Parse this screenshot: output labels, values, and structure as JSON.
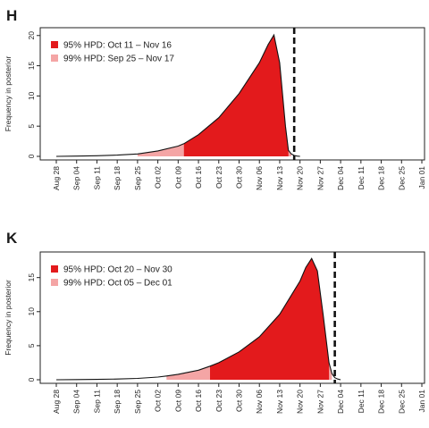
{
  "chart_data": [
    {
      "panel": "H",
      "type": "area",
      "ylabel": "Frequency in posterior",
      "ylim": [
        0,
        21
      ],
      "yticks": [
        0,
        5,
        10,
        15,
        20
      ],
      "x_ticks": [
        "Aug 28",
        "Sep 04",
        "Sep 11",
        "Sep 18",
        "Sep 25",
        "Oct 02",
        "Oct 09",
        "Oct 16",
        "Oct 23",
        "Oct 30",
        "Nov 06",
        "Nov 13",
        "Nov 20",
        "Nov 27",
        "Dec 04",
        "Dec 11",
        "Dec 18",
        "Dec 25",
        "Jan 01"
      ],
      "legend": [
        {
          "label": "95% HPD: Oct 11 – Nov 16",
          "color": "#e31a1c"
        },
        {
          "label": "99% HPD: Sep 25 – Nov 17",
          "color": "#f4a5a5"
        }
      ],
      "hpd95": [
        "Oct 11",
        "Nov 16"
      ],
      "hpd99": [
        "Sep 25",
        "Nov 17"
      ],
      "vline": "Nov 18",
      "x": [
        "Aug 28",
        "Sep 04",
        "Sep 11",
        "Sep 18",
        "Sep 25",
        "Oct 02",
        "Oct 09",
        "Oct 11",
        "Oct 16",
        "Oct 23",
        "Oct 30",
        "Nov 06",
        "Nov 09",
        "Nov 11",
        "Nov 13",
        "Nov 15",
        "Nov 16",
        "Nov 17",
        "Nov 18",
        "Nov 19",
        "Nov 20"
      ],
      "y": [
        0.0,
        0.05,
        0.1,
        0.2,
        0.4,
        0.9,
        1.7,
        2.1,
        3.6,
        6.4,
        10.4,
        15.5,
        18.5,
        20.1,
        15.5,
        5.0,
        1.0,
        0.4,
        0.15,
        0.05,
        0.0
      ]
    },
    {
      "panel": "K",
      "type": "area",
      "ylabel": "Frequency in posterior",
      "ylim": [
        0,
        18.5
      ],
      "yticks": [
        0,
        5,
        10,
        15
      ],
      "x_ticks": [
        "Aug 28",
        "Sep 04",
        "Sep 11",
        "Sep 18",
        "Sep 25",
        "Oct 02",
        "Oct 09",
        "Oct 16",
        "Oct 23",
        "Oct 30",
        "Nov 06",
        "Nov 13",
        "Nov 20",
        "Nov 27",
        "Dec 04",
        "Dec 11",
        "Dec 18",
        "Dec 25",
        "Jan 01"
      ],
      "legend": [
        {
          "label": "95% HPD: Oct 20 – Nov 30",
          "color": "#e31a1c"
        },
        {
          "label": "99% HPD: Oct 05 – Dec 01",
          "color": "#f4a5a5"
        }
      ],
      "hpd95": [
        "Oct 20",
        "Nov 30"
      ],
      "hpd99": [
        "Oct 05",
        "Dec 01"
      ],
      "vline": "Dec 02",
      "x": [
        "Aug 28",
        "Sep 04",
        "Sep 11",
        "Sep 18",
        "Sep 25",
        "Oct 02",
        "Oct 05",
        "Oct 09",
        "Oct 16",
        "Oct 20",
        "Oct 23",
        "Oct 30",
        "Nov 06",
        "Nov 13",
        "Nov 20",
        "Nov 22",
        "Nov 24",
        "Nov 26",
        "Nov 28",
        "Nov 30",
        "Dec 01",
        "Dec 02",
        "Dec 03",
        "Dec 04"
      ],
      "y": [
        0.0,
        0.02,
        0.05,
        0.1,
        0.2,
        0.4,
        0.55,
        0.8,
        1.4,
        2.0,
        2.5,
        4.1,
        6.3,
        9.6,
        14.5,
        16.5,
        17.8,
        16.0,
        9.5,
        2.5,
        0.9,
        0.3,
        0.1,
        0.0
      ]
    }
  ]
}
